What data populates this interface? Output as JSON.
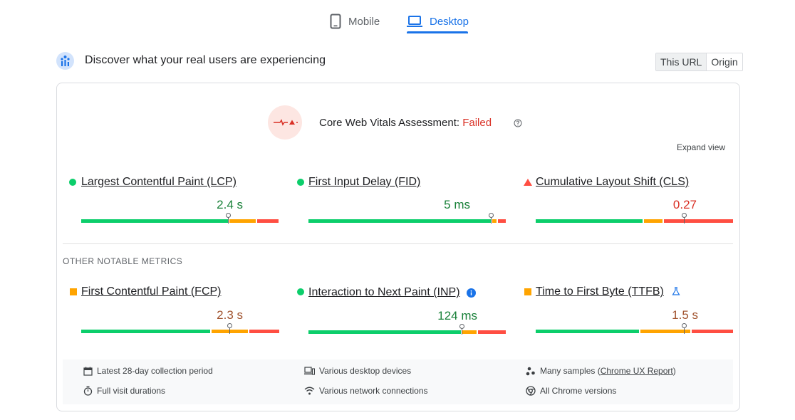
{
  "tabs": [
    {
      "label": "Mobile",
      "icon": "phone-icon",
      "active": false
    },
    {
      "label": "Desktop",
      "icon": "laptop-icon",
      "active": true
    }
  ],
  "header": {
    "title": "Discover what your real users are experiencing",
    "toggle": [
      "This URL",
      "Origin"
    ]
  },
  "assessment": {
    "label": "Core Web Vitals Assessment: ",
    "status": "Failed"
  },
  "expand_view": "Expand view",
  "core_metrics": [
    {
      "name": "Largest Contentful Paint (LCP)",
      "value": "2.4 s",
      "rating": "good",
      "color": "#188038"
    },
    {
      "name": "First Input Delay (FID)",
      "value": "5 ms",
      "rating": "good",
      "color": "#188038"
    },
    {
      "name": "Cumulative Layout Shift (CLS)",
      "value": "0.27",
      "rating": "poor",
      "color": "#d93025"
    }
  ],
  "other_label": "OTHER NOTABLE METRICS",
  "other_metrics": [
    {
      "name": "First Contentful Paint (FCP)",
      "value": "2.3 s",
      "rating": "needs-improvement",
      "color": "#a0522d"
    },
    {
      "name": "Interaction to Next Paint (INP)",
      "value": "124 ms",
      "rating": "good",
      "color": "#188038"
    },
    {
      "name": "Time to First Byte (TTFB)",
      "value": "1.5 s",
      "rating": "needs-improvement",
      "color": "#a0522d"
    }
  ],
  "distributions": {
    "lcp": [
      0.75,
      0.14,
      0.11
    ],
    "fid": [
      0.93,
      0.03,
      0.04
    ],
    "cls": [
      0.55,
      0.1,
      0.35
    ],
    "fcp": [
      0.66,
      0.19,
      0.15
    ],
    "inp": [
      0.78,
      0.08,
      0.14
    ],
    "ttfb": [
      0.53,
      0.26,
      0.21
    ]
  },
  "footer": {
    "collection": "Latest 28-day collection period",
    "devices": "Various desktop devices",
    "samples_prefix": "Many samples (",
    "samples_link": "Chrome UX Report",
    "samples_suffix": ")",
    "durations": "Full visit durations",
    "network": "Various network connections",
    "chrome": "All Chrome versions"
  },
  "colors": {
    "good": "#0cce6b",
    "needs": "#ffa400",
    "poor": "#ff4e42",
    "accent": "#1a73e8"
  }
}
